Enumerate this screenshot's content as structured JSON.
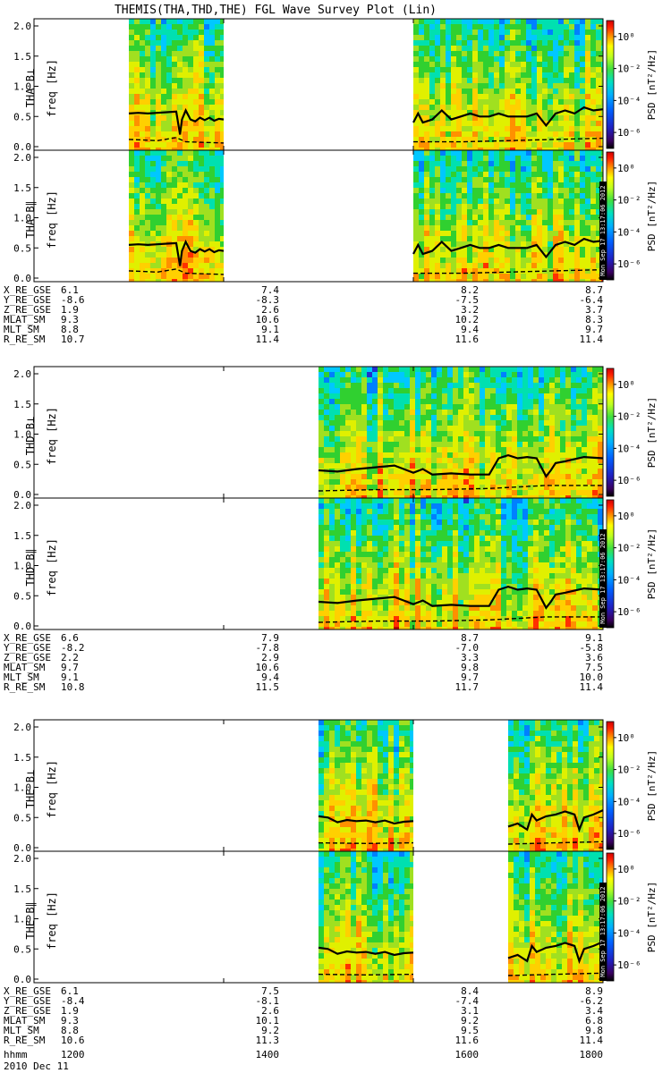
{
  "chart_data": {
    "type": "heatmap",
    "title": "THEMIS(THA,THD,THE) FGL Wave Survey Plot (Lin)",
    "date": "2010 Dec 11",
    "time_label": "hhmm",
    "time_ticks": [
      "1200",
      "1400",
      "1600",
      "1800"
    ],
    "xlim": [
      1200,
      1800
    ],
    "freq_unit_label": "freq [Hz]",
    "ylim": [
      0.0,
      2.0
    ],
    "y_ticks": [
      "0.0",
      "0.5",
      "1.0",
      "1.5",
      "2.0"
    ],
    "colorbar": {
      "label": "PSD [nT²/Hz]",
      "scale": "log",
      "range": [
        1e-07,
        10.0
      ],
      "ticks": [
        "10⁰",
        "10⁻²",
        "10⁻⁴",
        "10⁻⁶"
      ]
    },
    "side_stamp": "Mon Sep 17 13:17:06 2012",
    "ephemeris_labels": [
      "X_RE_GSE",
      "Y_RE_GSE",
      "Z_RE_GSE",
      "MLAT_SM",
      "MLT_SM",
      "R_RE_SM"
    ],
    "probes": [
      {
        "name": "THA",
        "panels": [
          {
            "label": "THA B⊥",
            "stamp": false
          },
          {
            "label": "THA B∥",
            "stamp": true
          }
        ],
        "data_intervals": [
          [
            1300,
            1400
          ],
          [
            1600,
            1800
          ]
        ],
        "series": [
          {
            "name": "solid",
            "x": [
              1300,
              1310,
              1320,
              1330,
              1340,
              1350,
              1354,
              1356,
              1360,
              1365,
              1370,
              1375,
              1380,
              1385,
              1390,
              1395,
              1400
            ],
            "y": [
              0.55,
              0.56,
              0.55,
              0.56,
              0.57,
              0.58,
              0.2,
              0.45,
              0.6,
              0.45,
              0.42,
              0.48,
              0.44,
              0.48,
              0.43,
              0.46,
              0.45
            ]
          },
          {
            "name": "solid",
            "x": [
              1600,
              1605,
              1610,
              1620,
              1630,
              1640,
              1650,
              1660,
              1670,
              1680,
              1690,
              1700,
              1710,
              1720,
              1730,
              1740,
              1750,
              1760,
              1770,
              1780,
              1790,
              1800
            ],
            "y": [
              0.4,
              0.55,
              0.4,
              0.45,
              0.6,
              0.45,
              0.5,
              0.55,
              0.5,
              0.5,
              0.55,
              0.5,
              0.5,
              0.5,
              0.55,
              0.35,
              0.55,
              0.6,
              0.55,
              0.65,
              0.6,
              0.62
            ]
          },
          {
            "name": "dashed",
            "x": [
              1300,
              1330,
              1350,
              1360,
              1400
            ],
            "y": [
              0.12,
              0.1,
              0.15,
              0.08,
              0.06
            ]
          },
          {
            "name": "dashed",
            "x": [
              1600,
              1650,
              1700,
              1750,
              1800
            ],
            "y": [
              0.08,
              0.08,
              0.1,
              0.12,
              0.14
            ]
          }
        ],
        "ephemeris": [
          [
            "6.1",
            "7.4",
            "8.2",
            "8.7"
          ],
          [
            "-8.6",
            "-8.3",
            "-7.5",
            "-6.4"
          ],
          [
            "1.9",
            "2.6",
            "3.2",
            "3.7"
          ],
          [
            "9.3",
            "10.6",
            "10.2",
            "8.3"
          ],
          [
            "8.8",
            "9.1",
            "9.4",
            "9.7"
          ],
          [
            "10.7",
            "11.4",
            "11.6",
            "11.4"
          ]
        ]
      },
      {
        "name": "THD",
        "panels": [
          {
            "label": "THD B⊥",
            "stamp": false
          },
          {
            "label": "THD B∥",
            "stamp": true
          }
        ],
        "data_intervals": [
          [
            1500,
            1800
          ]
        ],
        "series": [
          {
            "name": "solid",
            "x": [
              1500,
              1520,
              1540,
              1560,
              1580,
              1590,
              1600,
              1610,
              1620,
              1640,
              1660,
              1680,
              1690,
              1700,
              1710,
              1720,
              1730,
              1740,
              1745,
              1750,
              1760,
              1780,
              1800
            ],
            "y": [
              0.4,
              0.38,
              0.42,
              0.45,
              0.48,
              0.42,
              0.36,
              0.42,
              0.33,
              0.35,
              0.33,
              0.33,
              0.6,
              0.65,
              0.6,
              0.62,
              0.6,
              0.3,
              0.4,
              0.52,
              0.55,
              0.62,
              0.6
            ]
          },
          {
            "name": "dashed",
            "x": [
              1500,
              1560,
              1620,
              1680,
              1740,
              1800
            ],
            "y": [
              0.06,
              0.08,
              0.08,
              0.1,
              0.15,
              0.15
            ]
          }
        ],
        "ephemeris": [
          [
            "6.6",
            "7.9",
            "8.7",
            "9.1"
          ],
          [
            "-8.2",
            "-7.8",
            "-7.0",
            "-5.8"
          ],
          [
            "2.2",
            "2.9",
            "3.3",
            "3.6"
          ],
          [
            "9.7",
            "10.6",
            "9.8",
            "7.5"
          ],
          [
            "9.1",
            "9.4",
            "9.7",
            "10.0"
          ],
          [
            "10.8",
            "11.5",
            "11.7",
            "11.4"
          ]
        ]
      },
      {
        "name": "THE",
        "panels": [
          {
            "label": "THE B⊥",
            "stamp": false
          },
          {
            "label": "THE B∥",
            "stamp": true
          }
        ],
        "data_intervals": [
          [
            1500,
            1600
          ],
          [
            1700,
            1800
          ]
        ],
        "series": [
          {
            "name": "solid",
            "x": [
              1500,
              1510,
              1520,
              1530,
              1540,
              1550,
              1560,
              1570,
              1580,
              1590,
              1600
            ],
            "y": [
              0.52,
              0.5,
              0.42,
              0.46,
              0.44,
              0.45,
              0.42,
              0.45,
              0.4,
              0.43,
              0.44
            ]
          },
          {
            "name": "solid",
            "x": [
              1700,
              1710,
              1720,
              1725,
              1730,
              1740,
              1750,
              1760,
              1770,
              1775,
              1780,
              1790,
              1800
            ],
            "y": [
              0.35,
              0.4,
              0.3,
              0.55,
              0.45,
              0.52,
              0.55,
              0.6,
              0.55,
              0.3,
              0.5,
              0.55,
              0.62
            ]
          },
          {
            "name": "dashed",
            "x": [
              1500,
              1550,
              1600
            ],
            "y": [
              0.08,
              0.07,
              0.08
            ]
          },
          {
            "name": "dashed",
            "x": [
              1700,
              1750,
              1800
            ],
            "y": [
              0.06,
              0.08,
              0.1
            ]
          }
        ],
        "ephemeris": [
          [
            "6.1",
            "7.5",
            "8.4",
            "8.9"
          ],
          [
            "-8.4",
            "-8.1",
            "-7.4",
            "-6.2"
          ],
          [
            "1.9",
            "2.6",
            "3.1",
            "3.4"
          ],
          [
            "9.3",
            "10.1",
            "9.2",
            "6.8"
          ],
          [
            "8.8",
            "9.2",
            "9.5",
            "9.8"
          ],
          [
            "10.6",
            "11.3",
            "11.6",
            "11.4"
          ]
        ]
      }
    ]
  }
}
